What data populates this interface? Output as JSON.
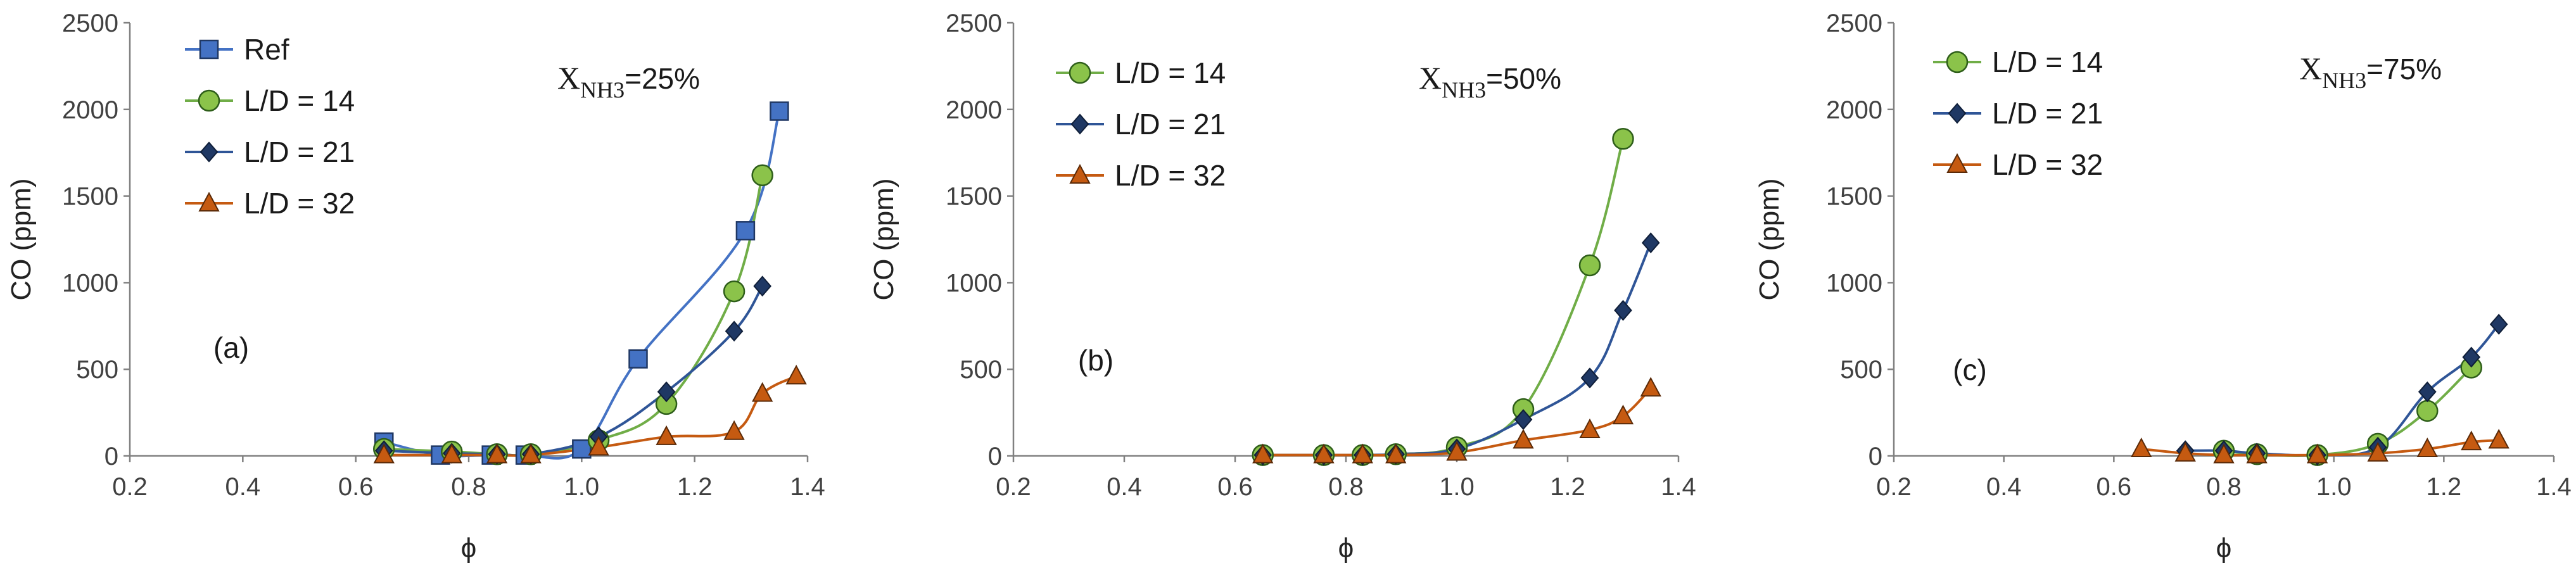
{
  "chart_data": [
    {
      "type": "line",
      "panel_label": "(a)",
      "annotation": {
        "symbol": "X",
        "subscript": "NH3",
        "rest": "=25%"
      },
      "xlabel": "ϕ",
      "ylabel": "CO (ppm)",
      "xlim": [
        0.2,
        1.4
      ],
      "ylim": [
        0,
        2500
      ],
      "xticks": [
        "0.2",
        "0.4",
        "0.6",
        "0.8",
        "1.0",
        "1.2",
        "1.4"
      ],
      "yticks": [
        "0",
        "500",
        "1000",
        "1500",
        "2000",
        "2500"
      ],
      "series": [
        {
          "name": "Ref",
          "marker": "square",
          "color": "#4472C4",
          "line_color": "#4472C4",
          "x": [
            0.65,
            0.75,
            0.84,
            0.9,
            1.0,
            1.1,
            1.29,
            1.35
          ],
          "y": [
            80,
            5,
            5,
            5,
            40,
            560,
            1300,
            1990
          ]
        },
        {
          "name": "L/D = 14",
          "marker": "circle",
          "color": "#8BC34A",
          "line_color": "#70AD47",
          "x": [
            0.65,
            0.77,
            0.85,
            0.91,
            1.03,
            1.15,
            1.27,
            1.32
          ],
          "y": [
            40,
            25,
            10,
            10,
            90,
            300,
            950,
            1620
          ]
        },
        {
          "name": "L/D = 21",
          "marker": "diamond",
          "color": "#1F3864",
          "line_color": "#2F5597",
          "x": [
            0.65,
            0.77,
            0.85,
            0.91,
            1.03,
            1.15,
            1.27,
            1.32
          ],
          "y": [
            30,
            15,
            10,
            10,
            110,
            370,
            720,
            980
          ]
        },
        {
          "name": "L/D = 32",
          "marker": "triangle",
          "color": "#C55A11",
          "line_color": "#C55A11",
          "x": [
            0.65,
            0.77,
            0.85,
            0.91,
            1.03,
            1.15,
            1.27,
            1.32,
            1.38
          ],
          "y": [
            5,
            5,
            5,
            5,
            50,
            110,
            140,
            360,
            460
          ]
        }
      ]
    },
    {
      "type": "line",
      "panel_label": "(b)",
      "annotation": {
        "symbol": "X",
        "subscript": "NH3",
        "rest": "=50%"
      },
      "xlabel": "ϕ",
      "ylabel": "CO (ppm)",
      "xlim": [
        0.2,
        1.4
      ],
      "ylim": [
        0,
        2500
      ],
      "xticks": [
        "0.2",
        "0.4",
        "0.6",
        "0.8",
        "1.0",
        "1.2",
        "1.4"
      ],
      "yticks": [
        "0",
        "500",
        "1000",
        "1500",
        "2000",
        "2500"
      ],
      "series": [
        {
          "name": "L/D = 14",
          "marker": "circle",
          "color": "#8BC34A",
          "line_color": "#70AD47",
          "x": [
            0.65,
            0.76,
            0.83,
            0.89,
            1.0,
            1.12,
            1.24,
            1.3
          ],
          "y": [
            5,
            5,
            5,
            10,
            50,
            270,
            1100,
            1830
          ]
        },
        {
          "name": "L/D = 21",
          "marker": "diamond",
          "color": "#1F3864",
          "line_color": "#2F5597",
          "x": [
            0.65,
            0.76,
            0.83,
            0.89,
            1.0,
            1.12,
            1.24,
            1.3,
            1.35
          ],
          "y": [
            5,
            5,
            5,
            10,
            40,
            210,
            450,
            840,
            1230
          ]
        },
        {
          "name": "L/D = 32",
          "marker": "triangle",
          "color": "#C55A11",
          "line_color": "#C55A11",
          "x": [
            0.65,
            0.76,
            0.83,
            0.89,
            1.0,
            1.12,
            1.24,
            1.3,
            1.35
          ],
          "y": [
            5,
            5,
            5,
            5,
            20,
            90,
            150,
            230,
            390
          ]
        }
      ]
    },
    {
      "type": "line",
      "panel_label": "(c)",
      "annotation": {
        "symbol": "X",
        "subscript": "NH3",
        "rest": "=75%"
      },
      "xlabel": "ϕ",
      "ylabel": "CO (ppm)",
      "xlim": [
        0.2,
        1.4
      ],
      "ylim": [
        0,
        2500
      ],
      "xticks": [
        "0.2",
        "0.4",
        "0.6",
        "0.8",
        "1.0",
        "1.2",
        "1.4"
      ],
      "yticks": [
        "0",
        "500",
        "1000",
        "1500",
        "2000",
        "2500"
      ],
      "series": [
        {
          "name": "L/D = 14",
          "marker": "circle",
          "color": "#8BC34A",
          "line_color": "#70AD47",
          "x": [
            0.8,
            0.86,
            0.97,
            1.08,
            1.17,
            1.25
          ],
          "y": [
            30,
            10,
            5,
            70,
            260,
            510
          ]
        },
        {
          "name": "L/D = 21",
          "marker": "diamond",
          "color": "#1F3864",
          "line_color": "#2F5597",
          "x": [
            0.73,
            0.8,
            0.86,
            0.97,
            1.08,
            1.17,
            1.25,
            1.3
          ],
          "y": [
            30,
            30,
            15,
            5,
            50,
            370,
            570,
            760
          ]
        },
        {
          "name": "L/D = 32",
          "marker": "triangle",
          "color": "#C55A11",
          "line_color": "#C55A11",
          "x": [
            0.65,
            0.73,
            0.8,
            0.86,
            0.97,
            1.08,
            1.17,
            1.25,
            1.3
          ],
          "y": [
            40,
            15,
            5,
            5,
            5,
            15,
            40,
            80,
            90
          ]
        }
      ]
    }
  ]
}
